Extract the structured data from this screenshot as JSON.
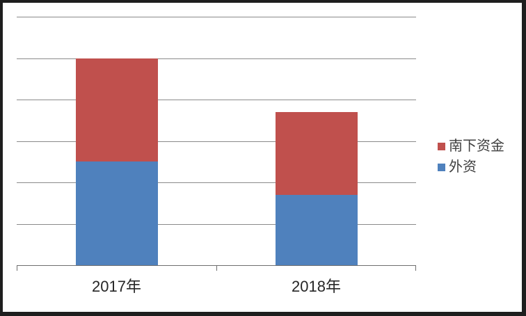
{
  "chart_data": {
    "type": "bar",
    "stacked": true,
    "categories": [
      "2017年",
      "2018年"
    ],
    "series": [
      {
        "name": "外资",
        "color": "#4F81BD",
        "values": [
          2.5,
          1.7
        ]
      },
      {
        "name": "南下资金",
        "color": "#C0504D",
        "values": [
          2.5,
          2.0
        ]
      }
    ],
    "title": "",
    "xlabel": "",
    "ylabel": "",
    "ylim": [
      0,
      6
    ],
    "gridline_step": 1,
    "grid": true,
    "y_tick_labels_visible": false,
    "legend_position": "right",
    "legend": [
      "南下资金",
      "外资"
    ],
    "colors": {
      "gridline": "#8a8a8a",
      "axis": "#6e6e6e",
      "text": "#262626",
      "legend_text": "#3f3f3f",
      "frame": "#1e1e1e",
      "background": "#ffffff"
    }
  }
}
